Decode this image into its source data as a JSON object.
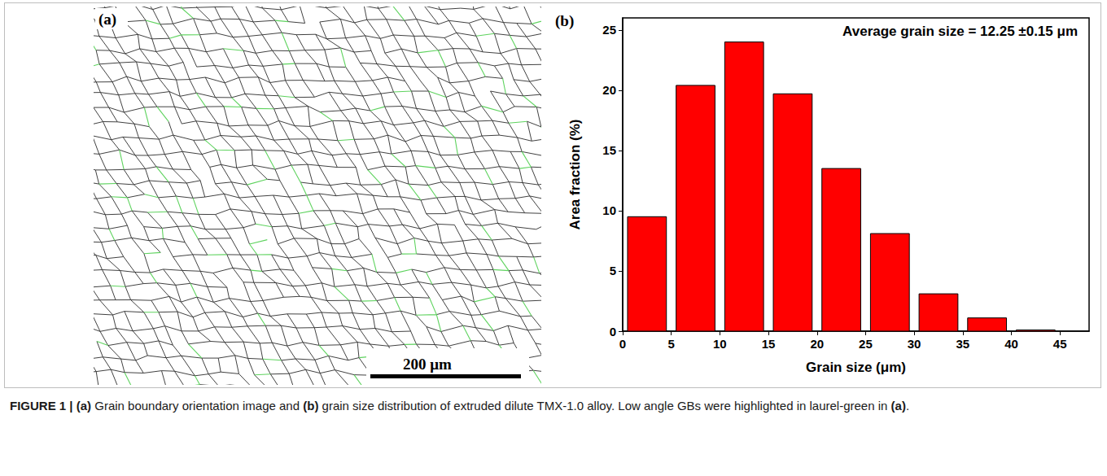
{
  "figure": {
    "panel_a": {
      "letter": "(a)",
      "scale_bar": "200 μm"
    },
    "panel_b": {
      "letter": "(b)"
    },
    "caption": [
      {
        "text": "FIGURE 1 | (a)",
        "bold": true
      },
      {
        "text": " Grain boundary orientation image and ",
        "bold": false
      },
      {
        "text": "(b)",
        "bold": true
      },
      {
        "text": " grain size distribution of extruded dilute TMX-1.0 alloy. Low angle GBs were highlighted in laurel-green in ",
        "bold": false
      },
      {
        "text": "(a)",
        "bold": true
      },
      {
        "text": ".",
        "bold": false
      }
    ]
  },
  "chart_data": {
    "type": "histogram",
    "bins": [
      0,
      5,
      10,
      15,
      20,
      25,
      30,
      35,
      40,
      45
    ],
    "values": [
      9.5,
      20.4,
      24.0,
      19.7,
      13.5,
      8.1,
      3.1,
      1.1,
      0.1
    ],
    "color": "#ff0000",
    "x_label": "Grain size (μm)",
    "y_label": "Area fraction (%)",
    "xlim": [
      0,
      48
    ],
    "ylim": [
      0,
      26
    ],
    "xticks": [
      0,
      5,
      10,
      15,
      20,
      25,
      30,
      35,
      40,
      45
    ],
    "yticks": [
      0,
      5,
      10,
      15,
      20,
      25
    ],
    "annotations": [
      "Average grain size = 12.25 ±0.15 μm"
    ]
  }
}
